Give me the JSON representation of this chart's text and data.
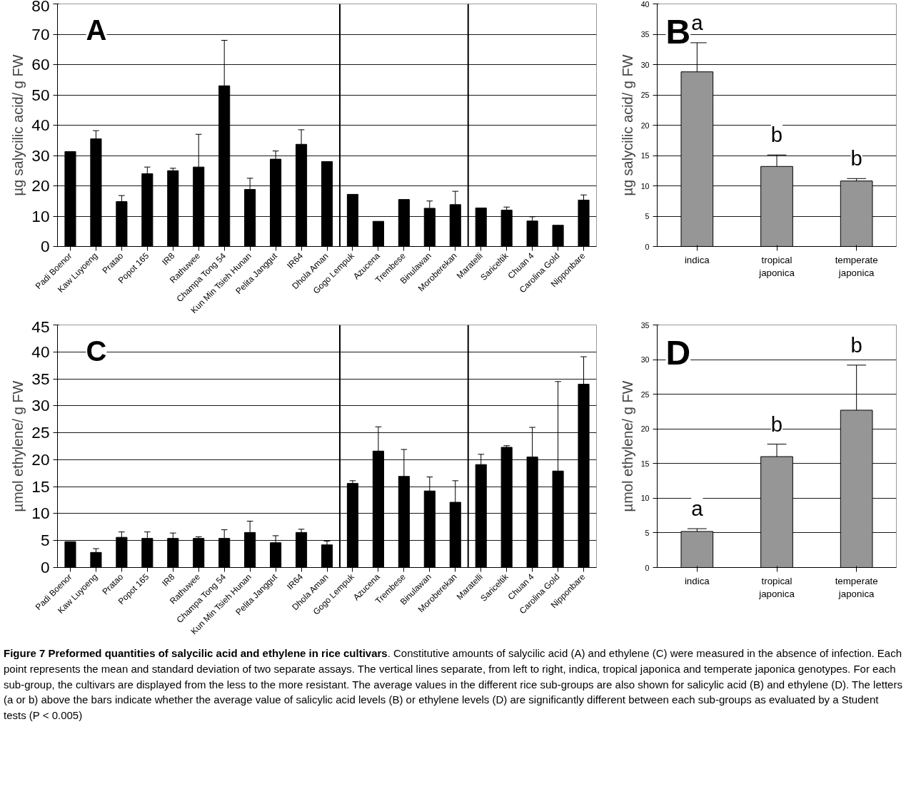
{
  "chart_data": [
    {
      "type": "bar",
      "ylabel": "µg salycilic acid/ g FW",
      "categories": [
        "Padi Boenor",
        "Kaw Luyoeng",
        "Pratao",
        "Popot 165",
        "IR8",
        "Rathuwee",
        "Champa Tong 54",
        "Kun Min Tsieh Hunan",
        "Pelita Janggut",
        "IR64",
        "Dhola Aman",
        "Gogo Lempuk",
        "Azucena",
        "Trembese",
        "Binulawan",
        "Moroberekan",
        "Maratelli",
        "Sariceltik",
        "Chuan 4",
        "Carolina Gold",
        "Nipponbare"
      ],
      "values": [
        31.3,
        35.5,
        14.8,
        24,
        25,
        26.2,
        53,
        18.8,
        28.8,
        33.7,
        28,
        17.2,
        8.3,
        15.5,
        12.6,
        13.8,
        12.7,
        12,
        8.4,
        7,
        15.3
      ],
      "errors": [
        null,
        [
          35.5,
          38.2
        ],
        [
          14.8,
          16.8
        ],
        [
          24,
          26.2
        ],
        [
          25,
          25.8
        ],
        [
          26.2,
          37
        ],
        [
          53,
          68
        ],
        [
          18.8,
          22.5
        ],
        [
          28.8,
          31.5
        ],
        [
          33.7,
          38.5
        ],
        null,
        null,
        null,
        null,
        [
          12.6,
          15
        ],
        [
          13.8,
          18.2
        ],
        null,
        [
          12,
          13
        ],
        [
          8.4,
          9.8
        ],
        null,
        [
          15.3,
          17
        ]
      ],
      "color": "#000000",
      "ylim": [
        0,
        80
      ],
      "yticks": [
        0,
        10,
        20,
        30,
        40,
        50,
        60,
        70,
        80
      ],
      "grid": "y",
      "annotations": [
        "A"
      ]
    },
    {
      "type": "bar",
      "ylabel": "µg salycilic acid/ g FW",
      "categories": [
        "indica",
        "tropical japonica",
        "temperate japonica"
      ],
      "values": [
        28.8,
        13.2,
        10.8
      ],
      "errors": [
        [
          28.8,
          33.6
        ],
        [
          13.2,
          15.1
        ],
        [
          10.8,
          11.2
        ]
      ],
      "color": "#969696",
      "ylim": [
        0,
        40
      ],
      "yticks": [
        0,
        5,
        10,
        15,
        20,
        25,
        30,
        35,
        40
      ],
      "grid": "y",
      "annotations": [
        "B",
        "a",
        "b",
        "b"
      ]
    },
    {
      "type": "bar",
      "ylabel": "µmol ethylene/ g FW",
      "categories": [
        "Padi Boenor",
        "Kaw Luyoeng",
        "Pratao",
        "Popot 165",
        "IR8",
        "Rathuwee",
        "Champa Tong 54",
        "Kun Min Tsieh Hunan",
        "Pelita Janggut",
        "IR64",
        "Dhola Aman",
        "Gogo Lempuk",
        "Azucena",
        "Trembese",
        "Binulawan",
        "Moroberekan",
        "Maratelli",
        "Sariceltik",
        "Chuan 4",
        "Carolina Gold",
        "Nipponbare"
      ],
      "values": [
        4.8,
        2.8,
        5.6,
        5.4,
        5.4,
        5.4,
        5.4,
        6.5,
        4.6,
        6.5,
        4.2,
        15.6,
        21.6,
        16.9,
        14.2,
        12.1,
        19.1,
        22.3,
        20.5,
        17.9,
        34
      ],
      "errors": [
        null,
        [
          2.8,
          3.5
        ],
        [
          5.6,
          6.6
        ],
        [
          5.4,
          6.6
        ],
        [
          5.4,
          6.4
        ],
        [
          5.4,
          5.7
        ],
        [
          5.4,
          7
        ],
        [
          6.5,
          8.6
        ],
        [
          4.6,
          5.9
        ],
        [
          6.5,
          7.1
        ],
        [
          4.2,
          4.9
        ],
        [
          15.6,
          16.1
        ],
        [
          21.6,
          26.1
        ],
        [
          16.9,
          21.9
        ],
        [
          14.2,
          16.8
        ],
        [
          12.1,
          16.1
        ],
        [
          19.1,
          21
        ],
        [
          22.3,
          22.6
        ],
        [
          20.5,
          26
        ],
        [
          17.9,
          34.5
        ],
        [
          34,
          39.1
        ]
      ],
      "color": "#000000",
      "ylim": [
        0,
        45
      ],
      "yticks": [
        0,
        5,
        10,
        15,
        20,
        25,
        30,
        35,
        40,
        45
      ],
      "grid": "y",
      "annotations": [
        "C"
      ]
    },
    {
      "type": "bar",
      "ylabel": "µmol ethylene/ g FW",
      "categories": [
        "indica",
        "tropical japonica",
        "temperate japonica"
      ],
      "values": [
        5.2,
        16,
        22.7
      ],
      "errors": [
        [
          5.2,
          5.6
        ],
        [
          16,
          17.8
        ],
        [
          22.7,
          29.2
        ]
      ],
      "color": "#969696",
      "ylim": [
        0,
        35
      ],
      "yticks": [
        0,
        5,
        10,
        15,
        20,
        25,
        30,
        35
      ],
      "grid": "y",
      "annotations": [
        "D",
        "a",
        "b",
        "b"
      ]
    },
    {
      "type": "other",
      "title": "Figure 7 Preformed quantities of salycilic acid and ethylene in rice cultivars",
      "subtitle": ". Constitutive amounts of salycilic acid (A) and ethylene (C) were measured in the absence of infection. Each point represents the mean and standard deviation of two separate assays. The vertical lines separate, from left to right, indica, tropical japonica and temperate japonica genotypes. For each sub-group, the cultivars are displayed from the less to the more resistant. The average values in the different rice sub-groups are also shown for salicylic acid (B) and ethylene (D). The letters (a or b) above the bars indicate whether the average value of salicylic acid levels (B) or ethylene levels (D) are significantly different between each sub-groups as evaluated by a Student tests (P < 0.005)"
    }
  ]
}
